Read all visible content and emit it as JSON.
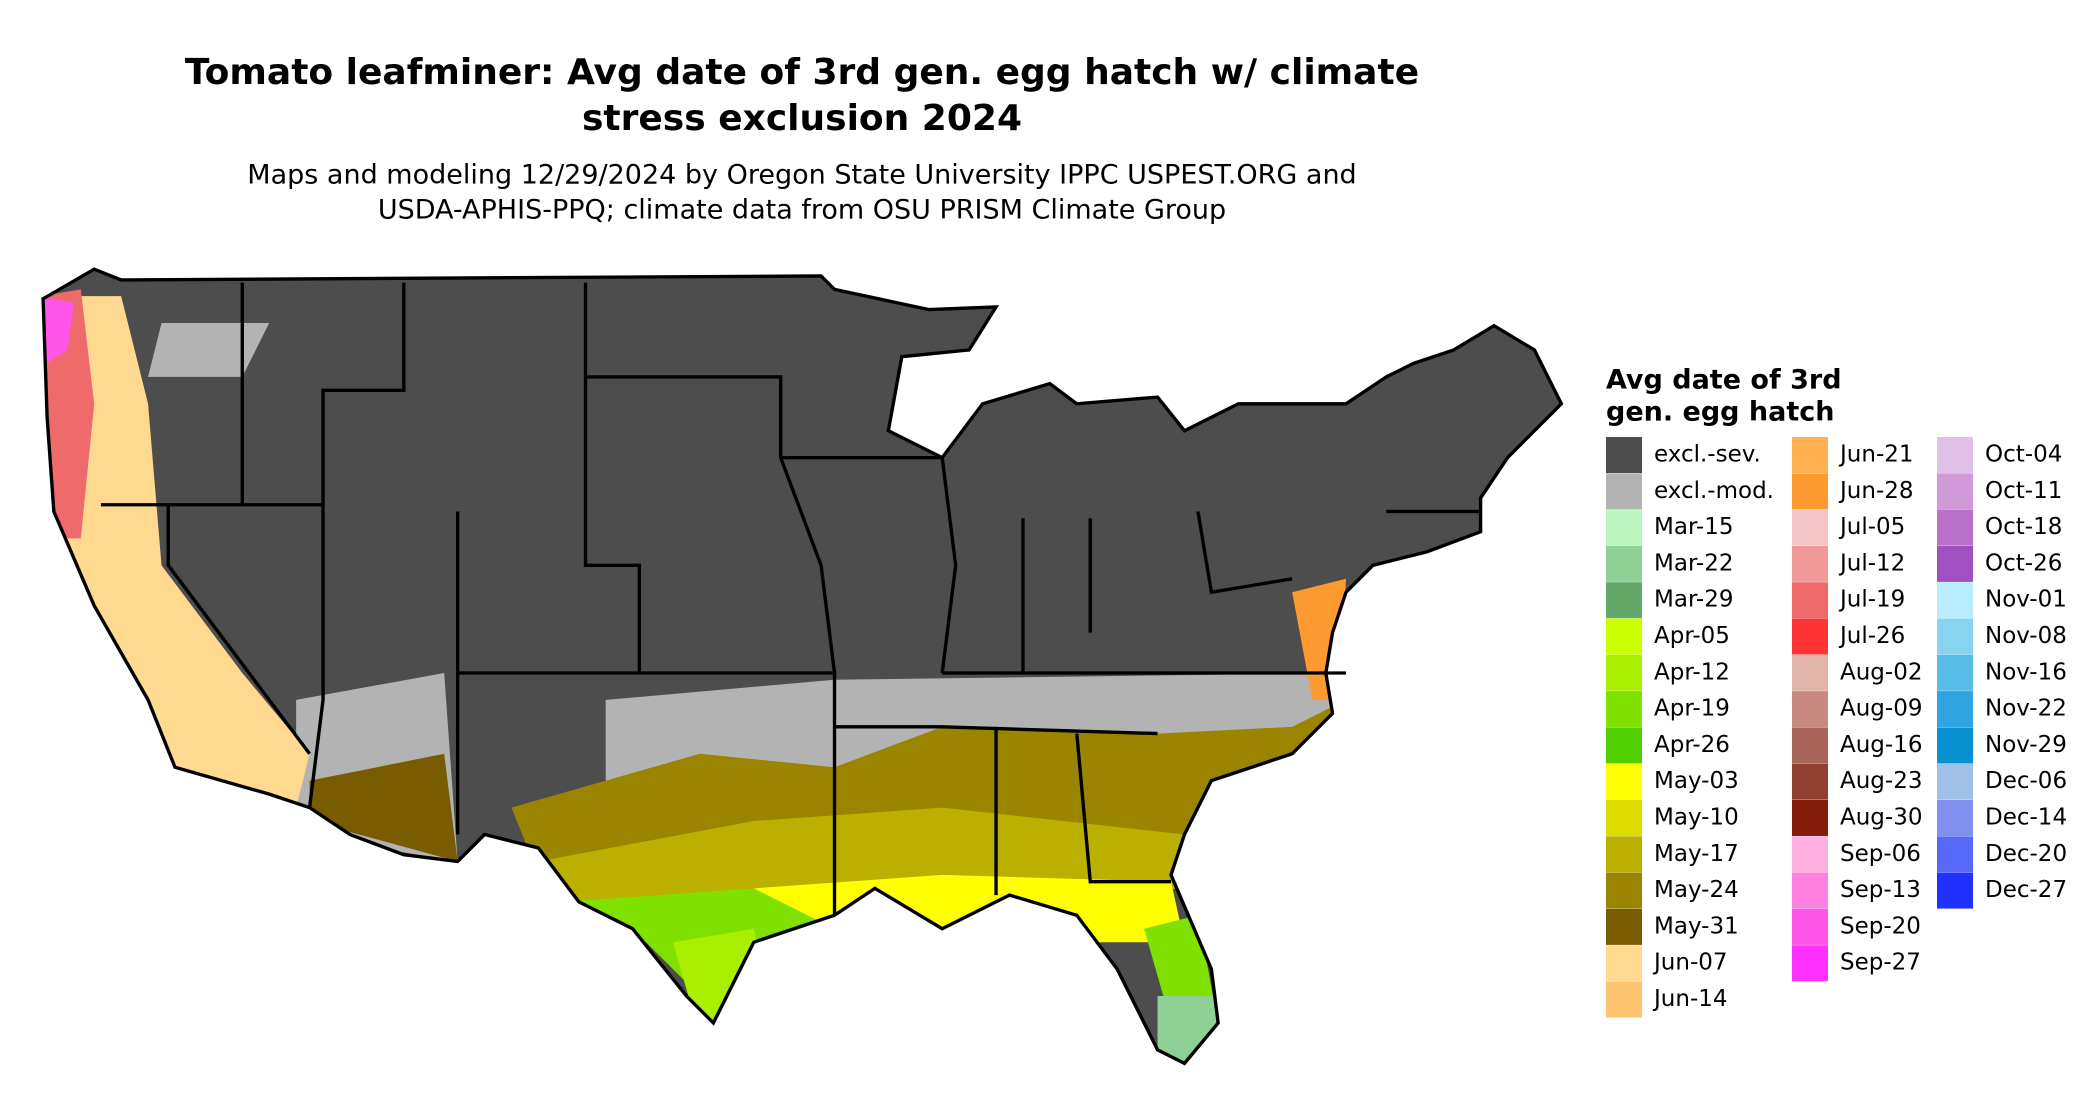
{
  "map": {
    "title": [
      "Tomato leafminer: Avg date of 3rd gen. egg hatch w/ climate",
      "stress exclusion 2024"
    ],
    "subtitle": [
      "Maps and modeling 12/29/2024 by Oregon State University IPPC USPEST.ORG and",
      "USDA-APHIS-PPQ; climate data from OSU PRISM Climate Group"
    ],
    "legend": {
      "title": [
        "Avg date of 3rd",
        "gen. egg hatch"
      ],
      "items": [
        {
          "label": "excl.-sev.",
          "color": "#4d4d4d"
        },
        {
          "label": "excl.-mod.",
          "color": "#b3b3b3"
        },
        {
          "label": "Mar-15",
          "color": "#baf5c0"
        },
        {
          "label": "Mar-22",
          "color": "#8fd096"
        },
        {
          "label": "Mar-29",
          "color": "#64a86a"
        },
        {
          "label": "Apr-05",
          "color": "#ccff00"
        },
        {
          "label": "Apr-12",
          "color": "#aaef00"
        },
        {
          "label": "Apr-19",
          "color": "#80e000"
        },
        {
          "label": "Apr-26",
          "color": "#50d000"
        },
        {
          "label": "May-03",
          "color": "#ffff00"
        },
        {
          "label": "May-10",
          "color": "#dddd00"
        },
        {
          "label": "May-17",
          "color": "#bbb000"
        },
        {
          "label": "May-24",
          "color": "#9a8400"
        },
        {
          "label": "May-31",
          "color": "#7a5c00"
        },
        {
          "label": "Jun-07",
          "color": "#ffd990"
        },
        {
          "label": "Jun-14",
          "color": "#ffc470"
        },
        {
          "label": "Jun-21",
          "color": "#ffb050"
        },
        {
          "label": "Jun-28",
          "color": "#ff9a30"
        },
        {
          "label": "Jul-05",
          "color": "#f5c6c6"
        },
        {
          "label": "Jul-12",
          "color": "#f19999"
        },
        {
          "label": "Jul-19",
          "color": "#ef6a6a"
        },
        {
          "label": "Jul-26",
          "color": "#ff3333"
        },
        {
          "label": "Aug-02",
          "color": "#e0b4a8"
        },
        {
          "label": "Aug-09",
          "color": "#c88a80"
        },
        {
          "label": "Aug-16",
          "color": "#a86458"
        },
        {
          "label": "Aug-23",
          "color": "#904030"
        },
        {
          "label": "Aug-30",
          "color": "#801c08"
        },
        {
          "label": "Sep-06",
          "color": "#ffb0e0"
        },
        {
          "label": "Sep-13",
          "color": "#ff80e0"
        },
        {
          "label": "Sep-20",
          "color": "#ff55e8"
        },
        {
          "label": "Sep-27",
          "color": "#ff30ff"
        },
        {
          "label": "Oct-04",
          "color": "#e0c0e8"
        },
        {
          "label": "Oct-11",
          "color": "#d09ad8"
        },
        {
          "label": "Oct-18",
          "color": "#b870c8"
        },
        {
          "label": "Oct-26",
          "color": "#a050c0"
        },
        {
          "label": "Nov-01",
          "color": "#b8ecff"
        },
        {
          "label": "Nov-08",
          "color": "#88d4f0"
        },
        {
          "label": "Nov-16",
          "color": "#58bce8"
        },
        {
          "label": "Nov-22",
          "color": "#30a4e0"
        },
        {
          "label": "Nov-29",
          "color": "#0890d0"
        },
        {
          "label": "Dec-06",
          "color": "#a0c0e8"
        },
        {
          "label": "Dec-14",
          "color": "#8090f0"
        },
        {
          "label": "Dec-20",
          "color": "#5868f8"
        },
        {
          "label": "Dec-27",
          "color": "#2030ff"
        }
      ]
    }
  }
}
